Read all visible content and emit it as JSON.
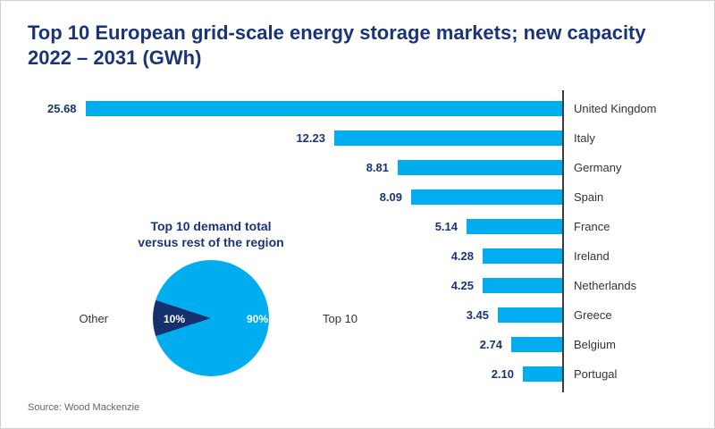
{
  "title": {
    "line1": "Top 10 European grid-scale energy storage markets; new capacity",
    "line2": "2022 – 2031 (GWh)"
  },
  "source": "Source: Wood Mackenzie",
  "colors": {
    "navy": "#1a3577",
    "cyan": "#00AEEF",
    "pie_other": "#14316e",
    "axis": "#3d3d3d"
  },
  "chart_data": [
    {
      "type": "bar",
      "orientation": "horizontal-right-anchored",
      "title": "Top 10 European grid-scale energy storage markets; new capacity 2022 – 2031 (GWh)",
      "categories": [
        "United Kingdom",
        "Italy",
        "Germany",
        "Spain",
        "France",
        "Ireland",
        "Netherlands",
        "Greece",
        "Belgium",
        "Portugal"
      ],
      "values": [
        25.68,
        12.23,
        8.81,
        8.09,
        5.14,
        4.28,
        4.25,
        3.45,
        2.74,
        2.1
      ],
      "value_labels": [
        "25.68",
        "12.23",
        "8.81",
        "8.09",
        "5.14",
        "4.28",
        "4.25",
        "3.45",
        "2.74",
        "2.10"
      ],
      "xlabel": "",
      "ylabel": "",
      "xlim": [
        0,
        25.68
      ],
      "grid": false,
      "legend": "none",
      "bar_color": "#00AEEF"
    },
    {
      "type": "pie",
      "title": "Top 10 demand total versus rest of the region",
      "title_lines": [
        "Top 10 demand total",
        "versus rest of the region"
      ],
      "slices": [
        {
          "label": "Top 10",
          "value": 90,
          "display": "90%",
          "color": "#00AEEF"
        },
        {
          "label": "Other",
          "value": 10,
          "display": "10%",
          "color": "#14316e"
        }
      ],
      "legend_position": "sides",
      "other_slice_direction_deg": 270
    }
  ]
}
